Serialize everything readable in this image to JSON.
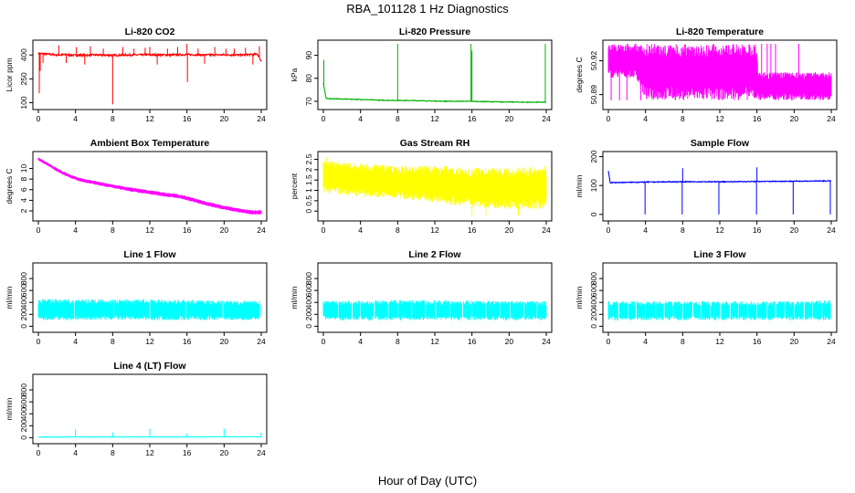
{
  "title": "RBA_101128  1 Hz Diagnostics",
  "xlabel": "Hour of Day (UTC)",
  "x_ticks": [
    0,
    4,
    8,
    12,
    16,
    20,
    24
  ],
  "chart_data": [
    {
      "type": "line",
      "title": "Li-820 CO2",
      "ylabel": "Licor ppm",
      "color": "#ff0000",
      "xlim": [
        0,
        24
      ],
      "ylim": [
        80,
        470
      ],
      "yticks": [
        100,
        250,
        400
      ],
      "series": [
        {
          "kind": "spiky",
          "x": [
            0,
            1,
            2,
            3,
            4,
            6,
            8,
            10,
            12,
            14,
            16,
            18,
            20,
            22,
            23.6,
            24
          ],
          "values": [
            410,
            405,
            400,
            402,
            398,
            400,
            398,
            400,
            401,
            400,
            402,
            400,
            401,
            400,
            405,
            360
          ],
          "noise": 12,
          "spikes": [
            [
              0.1,
              160
            ],
            [
              0.2,
              300
            ],
            [
              0.5,
              350
            ],
            [
              2.2,
              460
            ],
            [
              3.0,
              350
            ],
            [
              4.1,
              450
            ],
            [
              5.0,
              340
            ],
            [
              5.6,
              455
            ],
            [
              7.0,
              440
            ],
            [
              8.0,
              90
            ],
            [
              9.1,
              450
            ],
            [
              10.3,
              440
            ],
            [
              11.5,
              445
            ],
            [
              12.0,
              450
            ],
            [
              12.8,
              340
            ],
            [
              13.9,
              440
            ],
            [
              15.0,
              450
            ],
            [
              16.0,
              470
            ],
            [
              16.05,
              230
            ],
            [
              17.2,
              440
            ],
            [
              17.9,
              345
            ],
            [
              19.0,
              450
            ],
            [
              20.2,
              440
            ],
            [
              21.1,
              440
            ],
            [
              22.3,
              445
            ],
            [
              23.1,
              340
            ],
            [
              23.8,
              455
            ]
          ]
        }
      ]
    },
    {
      "type": "line",
      "title": "Li-820 Pressure",
      "ylabel": "kPa",
      "color": "#00b000",
      "xlim": [
        0,
        24
      ],
      "ylim": [
        68,
        95
      ],
      "yticks": [
        70,
        80,
        90
      ],
      "series": [
        {
          "kind": "spiky",
          "x": [
            0,
            0.3,
            2,
            4,
            6,
            8,
            10,
            12,
            14,
            16,
            18,
            20,
            22,
            24
          ],
          "values": [
            78,
            71.2,
            71,
            70.8,
            70.5,
            70.4,
            70.3,
            70.1,
            70,
            70,
            69.8,
            69.7,
            69.6,
            69.6
          ],
          "noise": 0.3,
          "spikes": [
            [
              0.05,
              88
            ],
            [
              8.0,
              95
            ],
            [
              15.9,
              95
            ],
            [
              16.0,
              92
            ],
            [
              23.9,
              95
            ]
          ]
        }
      ]
    },
    {
      "type": "line",
      "title": "Li-820 Temperature",
      "ylabel": "degrees C",
      "color": "#ff00ff",
      "xlim": [
        0,
        24
      ],
      "ylim": [
        50.88,
        50.935
      ],
      "yticks": [
        50.89,
        50.92
      ],
      "series": [
        {
          "kind": "band",
          "x": [
            0,
            3,
            4,
            8,
            12,
            16,
            16.1,
            20,
            24
          ],
          "low": [
            50.905,
            50.905,
            50.885,
            50.885,
            50.885,
            50.885,
            50.885,
            50.885,
            50.885
          ],
          "high": [
            50.935,
            50.935,
            50.935,
            50.935,
            50.935,
            50.935,
            50.91,
            50.91,
            50.91
          ],
          "spikes": [
            [
              0.3,
              50.885
            ],
            [
              1.2,
              50.885
            ],
            [
              2.0,
              50.885
            ],
            [
              3.5,
              50.885
            ],
            [
              16.5,
              50.935
            ],
            [
              17.1,
              50.935
            ],
            [
              17.5,
              50.935
            ],
            [
              18.0,
              50.935
            ],
            [
              20.5,
              50.935
            ]
          ]
        }
      ]
    },
    {
      "type": "line",
      "title": "Ambient Box Temperature",
      "ylabel": "degrees C",
      "color": "#ff00ff",
      "xlim": [
        0,
        24
      ],
      "ylim": [
        0.8,
        12.5
      ],
      "yticks": [
        2,
        4,
        6,
        8,
        10
      ],
      "series": [
        {
          "kind": "band",
          "x": [
            0,
            1,
            2,
            3,
            4,
            5,
            6,
            8,
            10,
            12,
            14,
            15,
            16,
            18,
            20,
            22,
            23,
            24
          ],
          "low": [
            11.5,
            10.5,
            9.4,
            8.5,
            7.8,
            7.3,
            7.0,
            6.3,
            5.6,
            5.1,
            4.6,
            4.4,
            4.0,
            3.0,
            2.2,
            1.6,
            1.3,
            1.3
          ],
          "high": [
            12.1,
            11.1,
            10.1,
            9.2,
            8.5,
            8.0,
            7.7,
            7.0,
            6.4,
            5.9,
            5.4,
            5.2,
            4.8,
            3.8,
            3.0,
            2.4,
            2.1,
            2.2
          ],
          "spikes": []
        }
      ]
    },
    {
      "type": "line",
      "title": "Gas Stream RH",
      "ylabel": "percent",
      "color": "#ffff00",
      "xlim": [
        0,
        24
      ],
      "ylim": [
        -0.3,
        2.7
      ],
      "yticks": [
        0.0,
        0.5,
        1.0,
        1.5,
        2.0,
        2.5
      ],
      "series": [
        {
          "kind": "band",
          "x": [
            0,
            4,
            8,
            12,
            16,
            20,
            24
          ],
          "low": [
            0.9,
            0.7,
            0.6,
            0.4,
            0.2,
            0.1,
            0.1
          ],
          "high": [
            2.5,
            2.3,
            2.2,
            2.2,
            2.1,
            2.1,
            2.2
          ],
          "spikes": [
            [
              0.3,
              2.6
            ],
            [
              16.0,
              -0.2
            ],
            [
              17.5,
              -0.2
            ],
            [
              21.0,
              -0.2
            ]
          ]
        }
      ]
    },
    {
      "type": "line",
      "title": "Sample Flow",
      "ylabel": "ml/min",
      "color": "#0000ff",
      "xlim": [
        0,
        24
      ],
      "ylim": [
        -10,
        205
      ],
      "yticks": [
        0,
        100,
        200
      ],
      "series": [
        {
          "kind": "spiky",
          "x": [
            0,
            0.2,
            4,
            8,
            12,
            16,
            20,
            24
          ],
          "values": [
            150,
            110,
            112,
            113,
            113,
            114,
            115,
            116
          ],
          "noise": 3,
          "spikes": [
            [
              3.95,
              0
            ],
            [
              7.95,
              0
            ],
            [
              8.0,
              160
            ],
            [
              11.9,
              0
            ],
            [
              15.95,
              0
            ],
            [
              16.0,
              163
            ],
            [
              19.9,
              0
            ],
            [
              23.9,
              0
            ]
          ]
        }
      ]
    },
    {
      "type": "line",
      "title": "Line 1 Flow",
      "ylabel": "ml/min",
      "color": "#00ffff",
      "xlim": [
        0,
        24
      ],
      "ylim": [
        -40,
        1000
      ],
      "yticks": [
        0,
        200,
        400,
        600,
        800
      ],
      "series": [
        {
          "kind": "band",
          "x": [
            0,
            4,
            8,
            12,
            16,
            20,
            24
          ],
          "low": [
            100,
            100,
            100,
            100,
            100,
            100,
            100
          ],
          "high": [
            460,
            455,
            460,
            455,
            440,
            435,
            430
          ],
          "gaps": [
            3.9,
            8.1,
            12.0,
            15.9,
            19.9,
            23.9
          ],
          "spikes": []
        }
      ]
    },
    {
      "type": "line",
      "title": "Line 2 Flow",
      "ylabel": "ml/min",
      "color": "#00ffff",
      "xlim": [
        0,
        24
      ],
      "ylim": [
        -40,
        1000
      ],
      "yticks": [
        0,
        200,
        400,
        600,
        800
      ],
      "series": [
        {
          "kind": "band",
          "x": [
            0,
            4,
            8,
            12,
            16,
            20,
            24
          ],
          "low": [
            100,
            100,
            100,
            100,
            100,
            100,
            100
          ],
          "high": [
            430,
            430,
            440,
            435,
            430,
            425,
            420
          ],
          "gaps": [
            1.6,
            3.1,
            4.0,
            5.5,
            7.0,
            8.0,
            9.5,
            11.0,
            12.1,
            13.6,
            15.0,
            16.0,
            17.5,
            19.0,
            20.1,
            21.6,
            23.0
          ],
          "spikes": []
        }
      ]
    },
    {
      "type": "line",
      "title": "Line 3 Flow",
      "ylabel": "ml/min",
      "color": "#00ffff",
      "xlim": [
        0,
        24
      ],
      "ylim": [
        -40,
        1000
      ],
      "yticks": [
        0,
        200,
        400,
        600,
        800
      ],
      "series": [
        {
          "kind": "band",
          "x": [
            0,
            4,
            8,
            12,
            16,
            20,
            24
          ],
          "low": [
            100,
            100,
            100,
            100,
            100,
            100,
            100
          ],
          "high": [
            420,
            420,
            420,
            420,
            420,
            420,
            440
          ],
          "gaps": [
            1.1,
            2.1,
            3.0,
            4.0,
            5.1,
            6.0,
            7.0,
            8.0,
            9.1,
            10.0,
            11.0,
            12.1,
            13.1,
            14.0,
            15.0,
            16.0,
            17.1,
            18.0,
            19.0,
            20.0,
            21.1,
            22.0,
            23.0,
            24.0
          ],
          "spikes": []
        }
      ]
    },
    {
      "type": "line",
      "title": "Line 4 (LT) Flow",
      "ylabel": "ml/min",
      "color": "#00ffff",
      "xlim": [
        0,
        24
      ],
      "ylim": [
        -40,
        1000
      ],
      "yticks": [
        0,
        200,
        400,
        600,
        800
      ],
      "series": [
        {
          "kind": "spiky",
          "x": [
            0,
            4,
            8,
            12,
            16,
            20,
            24
          ],
          "values": [
            10,
            12,
            12,
            12,
            12,
            14,
            14
          ],
          "noise": 4,
          "spikes": [
            [
              4.0,
              140
            ],
            [
              8.0,
              90
            ],
            [
              12.0,
              150
            ],
            [
              16.0,
              70
            ],
            [
              20.0,
              150
            ],
            [
              24.0,
              90
            ]
          ]
        }
      ]
    }
  ]
}
